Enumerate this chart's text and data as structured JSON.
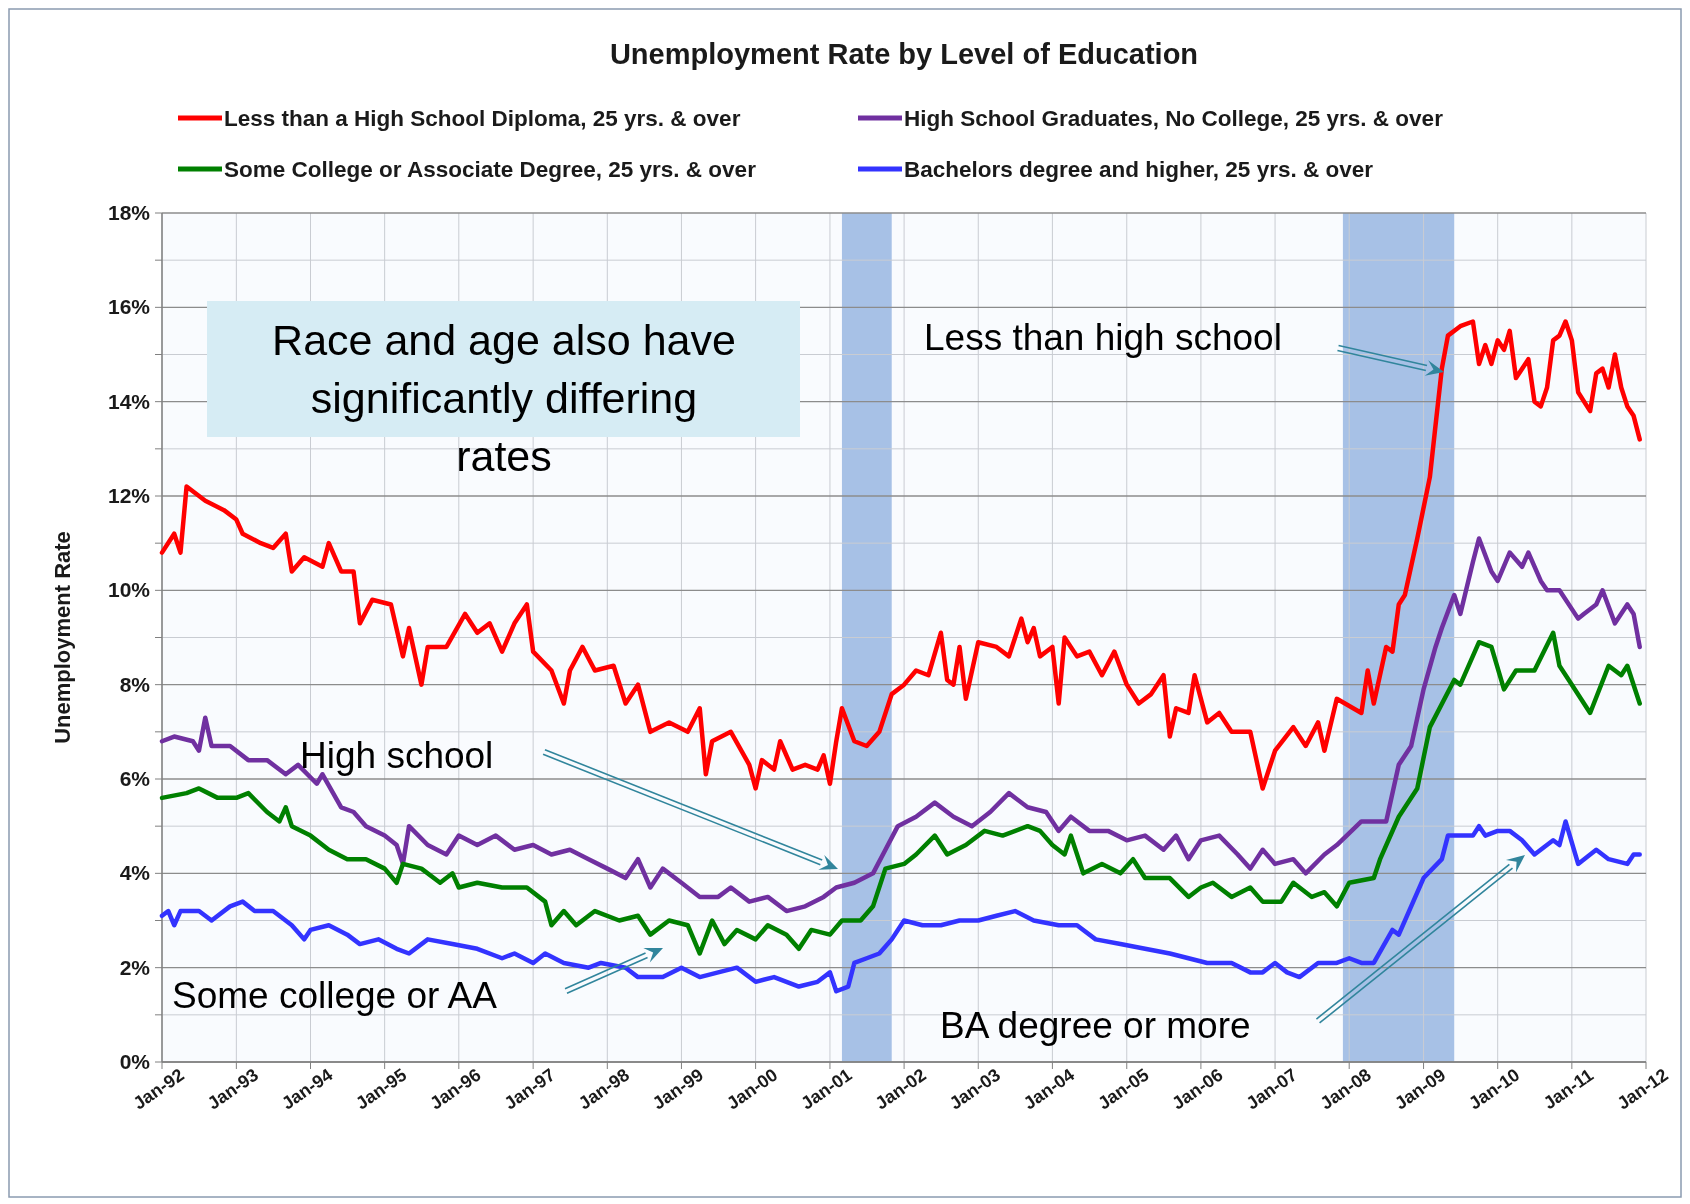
{
  "chart_data": {
    "type": "line",
    "title": "Unemployment Rate by Level of Education",
    "ylabel": "Unemployment Rate",
    "legend": "top",
    "grid": true,
    "marker": "none",
    "line_style": "solid",
    "xlim": [
      "1992-01",
      "2012-01"
    ],
    "xticks": [
      {
        "value": "1992-01",
        "label": "Jan-92"
      },
      {
        "value": "1993-01",
        "label": "Jan-93"
      },
      {
        "value": "1994-01",
        "label": "Jan-94"
      },
      {
        "value": "1995-01",
        "label": "Jan-95"
      },
      {
        "value": "1996-01",
        "label": "Jan-96"
      },
      {
        "value": "1997-01",
        "label": "Jan-97"
      },
      {
        "value": "1998-01",
        "label": "Jan-98"
      },
      {
        "value": "1999-01",
        "label": "Jan-99"
      },
      {
        "value": "2000-01",
        "label": "Jan-00"
      },
      {
        "value": "2001-01",
        "label": "Jan-01"
      },
      {
        "value": "2002-01",
        "label": "Jan-02"
      },
      {
        "value": "2003-01",
        "label": "Jan-03"
      },
      {
        "value": "2004-01",
        "label": "Jan-04"
      },
      {
        "value": "2005-01",
        "label": "Jan-05"
      },
      {
        "value": "2006-01",
        "label": "Jan-06"
      },
      {
        "value": "2007-01",
        "label": "Jan-07"
      },
      {
        "value": "2008-01",
        "label": "Jan-08"
      },
      {
        "value": "2009-01",
        "label": "Jan-09"
      },
      {
        "value": "2010-01",
        "label": "Jan-10"
      },
      {
        "value": "2011-01",
        "label": "Jan-11"
      },
      {
        "value": "2012-01",
        "label": "Jan-12"
      }
    ],
    "ylim": [
      0,
      18
    ],
    "yticks": [
      {
        "value": 0,
        "label": "0%"
      },
      {
        "value": 1,
        "label": null
      },
      {
        "value": 2,
        "label": "2%"
      },
      {
        "value": 3,
        "label": null
      },
      {
        "value": 4,
        "label": "4%"
      },
      {
        "value": 5,
        "label": null
      },
      {
        "value": 6,
        "label": "6%"
      },
      {
        "value": 7,
        "label": null
      },
      {
        "value": 8,
        "label": "8%"
      },
      {
        "value": 9,
        "label": null
      },
      {
        "value": 10,
        "label": "10%"
      },
      {
        "value": 11,
        "label": null
      },
      {
        "value": 12,
        "label": "12%"
      },
      {
        "value": 13,
        "label": null
      },
      {
        "value": 14,
        "label": "14%"
      },
      {
        "value": 15,
        "label": null
      },
      {
        "value": 16,
        "label": "16%"
      },
      {
        "value": 17,
        "label": null
      },
      {
        "value": 18,
        "label": "18%"
      }
    ],
    "bands": [
      {
        "axis": "x",
        "from": "2001-03",
        "to": "2001-11",
        "color": "#a7c1e6"
      },
      {
        "axis": "x",
        "from": "2007-12",
        "to": "2009-06",
        "color": "#a7c1e6"
      }
    ],
    "annotations": [
      "Race and age also have significantly differing rates",
      "Less than high school",
      "High school",
      "Some college or AA",
      "BA degree or more"
    ],
    "series": [
      {
        "name": "Less than a High School Diploma, 25 yrs. & over",
        "color": "#ff0000",
        "x": [
          "1992-01",
          "1992-03",
          "1992-04",
          "1992-05",
          "1992-08",
          "1992-11",
          "1993-01",
          "1993-02",
          "1993-05",
          "1993-07",
          "1993-09",
          "1993-10",
          "1993-12",
          "1994-03",
          "1994-04",
          "1994-06",
          "1994-08",
          "1994-09",
          "1994-11",
          "1995-02",
          "1995-04",
          "1995-05",
          "1995-07",
          "1995-08",
          "1995-11",
          "1996-02",
          "1996-04",
          "1996-06",
          "1996-08",
          "1996-10",
          "1996-12",
          "1997-01",
          "1997-04",
          "1997-06",
          "1997-07",
          "1997-09",
          "1997-11",
          "1998-02",
          "1998-04",
          "1998-06",
          "1998-08",
          "1998-11",
          "1999-02",
          "1999-04",
          "1999-05",
          "1999-06",
          "1999-09",
          "1999-12",
          "2000-01",
          "2000-02",
          "2000-04",
          "2000-05",
          "2000-07",
          "2000-09",
          "2000-11",
          "2000-12",
          "2001-01",
          "2001-02",
          "2001-03",
          "2001-05",
          "2001-07",
          "2001-09",
          "2001-11",
          "2002-01",
          "2002-03",
          "2002-05",
          "2002-07",
          "2002-08",
          "2002-09",
          "2002-10",
          "2002-11",
          "2003-01",
          "2003-04",
          "2003-06",
          "2003-08",
          "2003-09",
          "2003-10",
          "2003-11",
          "2004-01",
          "2004-02",
          "2004-03",
          "2004-05",
          "2004-07",
          "2004-09",
          "2004-11",
          "2005-01",
          "2005-03",
          "2005-05",
          "2005-07",
          "2005-08",
          "2005-09",
          "2005-11",
          "2005-12",
          "2006-02",
          "2006-04",
          "2006-06",
          "2006-09",
          "2006-11",
          "2007-01",
          "2007-04",
          "2007-06",
          "2007-08",
          "2007-09",
          "2007-11",
          "2008-03",
          "2008-04",
          "2008-05",
          "2008-07",
          "2008-08",
          "2008-09",
          "2008-10",
          "2008-12",
          "2009-02",
          "2009-03",
          "2009-04",
          "2009-05",
          "2009-07",
          "2009-09",
          "2009-10",
          "2009-11",
          "2009-12",
          "2010-01",
          "2010-02",
          "2010-03",
          "2010-04",
          "2010-06",
          "2010-07",
          "2010-08",
          "2010-09",
          "2010-10",
          "2010-11",
          "2010-12",
          "2011-01",
          "2011-02",
          "2011-04",
          "2011-05",
          "2011-06",
          "2011-07",
          "2011-08",
          "2011-09",
          "2011-10",
          "2011-11",
          "2011-12"
        ],
        "values": [
          10.8,
          11.2,
          10.8,
          12.2,
          11.9,
          11.7,
          11.5,
          11.2,
          11.0,
          10.9,
          11.2,
          10.4,
          10.7,
          10.5,
          11.0,
          10.4,
          10.4,
          9.3,
          9.8,
          9.7,
          8.6,
          9.2,
          8.0,
          8.8,
          8.8,
          9.5,
          9.1,
          9.3,
          8.7,
          9.3,
          9.7,
          8.7,
          8.3,
          7.6,
          8.3,
          8.8,
          8.3,
          8.4,
          7.6,
          8.0,
          7.0,
          7.2,
          7.0,
          7.5,
          6.1,
          6.8,
          7.0,
          6.3,
          5.8,
          6.4,
          6.2,
          6.8,
          6.2,
          6.3,
          6.2,
          6.5,
          5.9,
          6.8,
          7.5,
          6.8,
          6.7,
          7.0,
          7.8,
          8.0,
          8.3,
          8.2,
          9.1,
          8.1,
          8.0,
          8.8,
          7.7,
          8.9,
          8.8,
          8.6,
          9.4,
          8.9,
          9.2,
          8.6,
          8.8,
          7.6,
          9.0,
          8.6,
          8.7,
          8.2,
          8.7,
          8.0,
          7.6,
          7.8,
          8.2,
          6.9,
          7.5,
          7.4,
          8.2,
          7.2,
          7.4,
          7.0,
          7.0,
          5.8,
          6.6,
          7.1,
          6.7,
          7.2,
          6.6,
          7.7,
          7.4,
          8.3,
          7.6,
          8.8,
          8.7,
          9.7,
          9.9,
          11.1,
          12.4,
          13.5,
          14.7,
          15.4,
          15.6,
          15.7,
          14.8,
          15.2,
          14.8,
          15.3,
          15.1,
          15.5,
          14.5,
          14.9,
          14.0,
          13.9,
          14.3,
          15.3,
          15.4,
          15.7,
          15.3,
          14.2,
          13.8,
          14.6,
          14.7,
          14.3,
          15.0,
          14.3,
          13.9,
          13.7,
          13.2
        ]
      },
      {
        "name": "High School Graduates, No College, 25 yrs. & over",
        "color": "#7030a0",
        "x": [
          "1992-01",
          "1992-03",
          "1992-06",
          "1992-07",
          "1992-08",
          "1992-09",
          "1992-12",
          "1993-03",
          "1993-06",
          "1993-09",
          "1993-11",
          "1994-02",
          "1994-03",
          "1994-06",
          "1994-08",
          "1994-10",
          "1995-01",
          "1995-03",
          "1995-04",
          "1995-05",
          "1995-08",
          "1995-11",
          "1996-01",
          "1996-04",
          "1996-07",
          "1996-10",
          "1997-01",
          "1997-04",
          "1997-07",
          "1997-10",
          "1998-01",
          "1998-04",
          "1998-06",
          "1998-08",
          "1998-10",
          "1999-01",
          "1999-04",
          "1999-07",
          "1999-09",
          "1999-12",
          "2000-03",
          "2000-06",
          "2000-09",
          "2000-12",
          "2001-02",
          "2001-05",
          "2001-08",
          "2001-10",
          "2001-12",
          "2002-03",
          "2002-06",
          "2002-09",
          "2002-12",
          "2003-03",
          "2003-06",
          "2003-09",
          "2003-12",
          "2004-02",
          "2004-04",
          "2004-07",
          "2004-10",
          "2005-01",
          "2005-04",
          "2005-07",
          "2005-09",
          "2005-11",
          "2006-01",
          "2006-04",
          "2006-07",
          "2006-09",
          "2006-11",
          "2007-01",
          "2007-04",
          "2007-06",
          "2007-09",
          "2007-11",
          "2008-03",
          "2008-07",
          "2008-09",
          "2008-11",
          "2009-01",
          "2009-03",
          "2009-04",
          "2009-06",
          "2009-07",
          "2009-09",
          "2009-10",
          "2009-12",
          "2010-01",
          "2010-03",
          "2010-05",
          "2010-06",
          "2010-08",
          "2010-09",
          "2010-11",
          "2011-02",
          "2011-03",
          "2011-05",
          "2011-06",
          "2011-08",
          "2011-10",
          "2011-11",
          "2011-12"
        ],
        "values": [
          6.8,
          6.9,
          6.8,
          6.6,
          7.3,
          6.7,
          6.7,
          6.4,
          6.4,
          6.1,
          6.3,
          5.9,
          6.1,
          5.4,
          5.3,
          5.0,
          4.8,
          4.6,
          4.2,
          5.0,
          4.6,
          4.4,
          4.8,
          4.6,
          4.8,
          4.5,
          4.6,
          4.4,
          4.5,
          4.3,
          4.1,
          3.9,
          4.3,
          3.7,
          4.1,
          3.8,
          3.5,
          3.5,
          3.7,
          3.4,
          3.5,
          3.2,
          3.3,
          3.5,
          3.7,
          3.8,
          4.0,
          4.5,
          5.0,
          5.2,
          5.5,
          5.2,
          5.0,
          5.3,
          5.7,
          5.4,
          5.3,
          4.9,
          5.2,
          4.9,
          4.9,
          4.7,
          4.8,
          4.5,
          4.8,
          4.3,
          4.7,
          4.8,
          4.4,
          4.1,
          4.5,
          4.2,
          4.3,
          4.0,
          4.4,
          4.6,
          5.1,
          5.1,
          6.3,
          6.7,
          7.9,
          8.8,
          9.2,
          9.9,
          9.5,
          10.6,
          11.1,
          10.4,
          10.2,
          10.8,
          10.5,
          10.8,
          10.2,
          10.0,
          10.0,
          9.4,
          9.5,
          9.7,
          10.0,
          9.3,
          9.7,
          9.5,
          8.8
        ]
      },
      {
        "name": "Some College or Associate Degree, 25 yrs. & over",
        "color": "#008000",
        "x": [
          "1992-01",
          "1992-05",
          "1992-07",
          "1992-10",
          "1993-01",
          "1993-03",
          "1993-06",
          "1993-08",
          "1993-09",
          "1993-10",
          "1994-01",
          "1994-04",
          "1994-07",
          "1994-10",
          "1995-01",
          "1995-03",
          "1995-04",
          "1995-07",
          "1995-10",
          "1995-12",
          "1996-01",
          "1996-04",
          "1996-08",
          "1996-12",
          "1997-03",
          "1997-04",
          "1997-06",
          "1997-08",
          "1997-11",
          "1998-03",
          "1998-06",
          "1998-08",
          "1998-11",
          "1999-02",
          "1999-04",
          "1999-06",
          "1999-08",
          "1999-10",
          "2000-01",
          "2000-03",
          "2000-06",
          "2000-08",
          "2000-10",
          "2001-01",
          "2001-03",
          "2001-06",
          "2001-08",
          "2001-10",
          "2002-01",
          "2002-03",
          "2002-06",
          "2002-08",
          "2002-11",
          "2003-02",
          "2003-05",
          "2003-09",
          "2003-11",
          "2004-01",
          "2004-03",
          "2004-04",
          "2004-06",
          "2004-09",
          "2004-12",
          "2005-02",
          "2005-04",
          "2005-08",
          "2005-11",
          "2006-01",
          "2006-03",
          "2006-06",
          "2006-09",
          "2006-11",
          "2007-02",
          "2007-04",
          "2007-07",
          "2007-09",
          "2007-11",
          "2008-01",
          "2008-05",
          "2008-06",
          "2008-09",
          "2008-12",
          "2009-02",
          "2009-06",
          "2009-07",
          "2009-10",
          "2009-12",
          "2010-02",
          "2010-04",
          "2010-07",
          "2010-10",
          "2010-11",
          "2011-01",
          "2011-04",
          "2011-07",
          "2011-09",
          "2011-10",
          "2011-12"
        ],
        "values": [
          5.6,
          5.7,
          5.8,
          5.6,
          5.6,
          5.7,
          5.3,
          5.1,
          5.4,
          5.0,
          4.8,
          4.5,
          4.3,
          4.3,
          4.1,
          3.8,
          4.2,
          4.1,
          3.8,
          4.0,
          3.7,
          3.8,
          3.7,
          3.7,
          3.4,
          2.9,
          3.2,
          2.9,
          3.2,
          3.0,
          3.1,
          2.7,
          3.0,
          2.9,
          2.3,
          3.0,
          2.5,
          2.8,
          2.6,
          2.9,
          2.7,
          2.4,
          2.8,
          2.7,
          3.0,
          3.0,
          3.3,
          4.1,
          4.2,
          4.4,
          4.8,
          4.4,
          4.6,
          4.9,
          4.8,
          5.0,
          4.9,
          4.6,
          4.4,
          4.8,
          4.0,
          4.2,
          4.0,
          4.3,
          3.9,
          3.9,
          3.5,
          3.7,
          3.8,
          3.5,
          3.7,
          3.4,
          3.4,
          3.8,
          3.5,
          3.6,
          3.3,
          3.8,
          3.9,
          4.3,
          5.2,
          5.8,
          7.1,
          8.1,
          8.0,
          8.9,
          8.8,
          7.9,
          8.3,
          8.3,
          9.1,
          8.4,
          8.0,
          7.4,
          8.4,
          8.2,
          8.4,
          7.6
        ]
      },
      {
        "name": "Bachelors degree and higher, 25 yrs. & over",
        "color": "#3333ff",
        "x": [
          "1992-01",
          "1992-02",
          "1992-03",
          "1992-04",
          "1992-07",
          "1992-09",
          "1992-12",
          "1993-02",
          "1993-04",
          "1993-07",
          "1993-10",
          "1993-12",
          "1994-01",
          "1994-04",
          "1994-07",
          "1994-09",
          "1994-12",
          "1995-03",
          "1995-05",
          "1995-08",
          "1995-12",
          "1996-04",
          "1996-08",
          "1996-10",
          "1997-01",
          "1997-03",
          "1997-06",
          "1997-10",
          "1997-12",
          "1998-04",
          "1998-06",
          "1998-10",
          "1999-01",
          "1999-04",
          "1999-07",
          "1999-10",
          "2000-01",
          "2000-04",
          "2000-08",
          "2000-11",
          "2001-01",
          "2001-02",
          "2001-04",
          "2001-05",
          "2001-07",
          "2001-09",
          "2001-11",
          "2002-01",
          "2002-04",
          "2002-07",
          "2002-10",
          "2003-01",
          "2003-04",
          "2003-07",
          "2003-10",
          "2004-02",
          "2004-05",
          "2004-08",
          "2004-12",
          "2005-04",
          "2005-08",
          "2005-11",
          "2006-02",
          "2006-06",
          "2006-09",
          "2006-11",
          "2007-01",
          "2007-03",
          "2007-05",
          "2007-08",
          "2007-11",
          "2008-01",
          "2008-03",
          "2008-05",
          "2008-08",
          "2008-09",
          "2008-11",
          "2009-01",
          "2009-04",
          "2009-05",
          "2009-09",
          "2009-10",
          "2009-11",
          "2010-01",
          "2010-03",
          "2010-05",
          "2010-07",
          "2010-10",
          "2010-11",
          "2010-12",
          "2011-02",
          "2011-05",
          "2011-07",
          "2011-10",
          "2011-11",
          "2011-12"
        ],
        "values": [
          3.1,
          3.2,
          2.9,
          3.2,
          3.2,
          3.0,
          3.3,
          3.4,
          3.2,
          3.2,
          2.9,
          2.6,
          2.8,
          2.9,
          2.7,
          2.5,
          2.6,
          2.4,
          2.3,
          2.6,
          2.5,
          2.4,
          2.2,
          2.3,
          2.1,
          2.3,
          2.1,
          2.0,
          2.1,
          2.0,
          1.8,
          1.8,
          2.0,
          1.8,
          1.9,
          2.0,
          1.7,
          1.8,
          1.6,
          1.7,
          1.9,
          1.5,
          1.6,
          2.1,
          2.2,
          2.3,
          2.6,
          3.0,
          2.9,
          2.9,
          3.0,
          3.0,
          3.1,
          3.2,
          3.0,
          2.9,
          2.9,
          2.6,
          2.5,
          2.4,
          2.3,
          2.2,
          2.1,
          2.1,
          1.9,
          1.9,
          2.1,
          1.9,
          1.8,
          2.1,
          2.1,
          2.2,
          2.1,
          2.1,
          2.8,
          2.7,
          3.3,
          3.9,
          4.3,
          4.8,
          4.8,
          5.0,
          4.8,
          4.9,
          4.9,
          4.7,
          4.4,
          4.7,
          4.6,
          5.1,
          4.2,
          4.5,
          4.3,
          4.2,
          4.4,
          4.4
        ]
      }
    ]
  }
}
